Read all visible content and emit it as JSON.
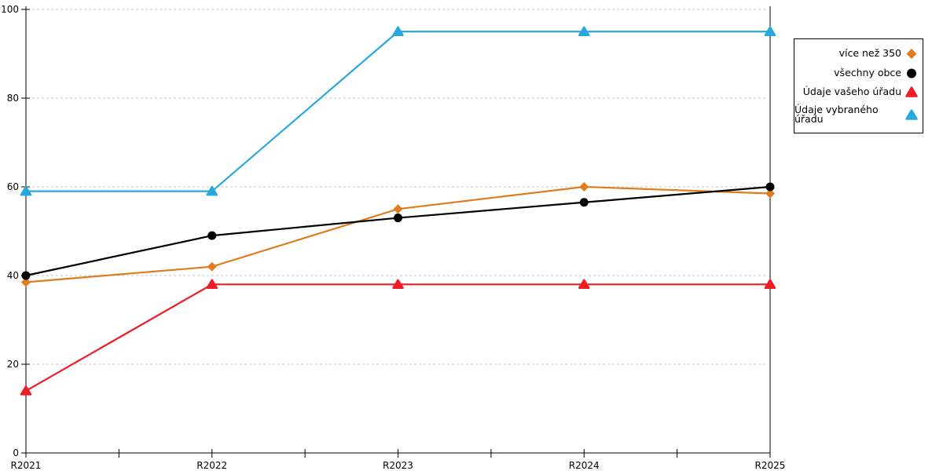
{
  "chart_data": {
    "type": "line",
    "title": "",
    "xlabel": "",
    "ylabel": "",
    "categories": [
      "R2021",
      "R2022",
      "R2023",
      "R2024",
      "R2025"
    ],
    "series": [
      {
        "name": "více než 350",
        "color": "#E07C1E",
        "marker": "diamond",
        "values": [
          38.5,
          42,
          55,
          60,
          58.5
        ]
      },
      {
        "name": "všechny obce",
        "color": "#000000",
        "marker": "circle",
        "values": [
          40,
          49,
          53,
          56.5,
          60
        ]
      },
      {
        "name": "Údaje vašeho úřadu",
        "color": "#EE1C25",
        "marker": "triangle",
        "values": [
          14,
          38,
          38,
          38,
          38
        ]
      },
      {
        "name": "Údaje vybraného úřadu",
        "color": "#29A8E0",
        "marker": "triangle",
        "values": [
          59,
          59,
          95,
          95,
          95
        ]
      }
    ],
    "ylim": [
      0,
      100
    ],
    "yticks": [
      0,
      20,
      40,
      60,
      80,
      100
    ],
    "x_minor_ticks": true,
    "grid": "horizontal-dashed",
    "gridline_color": "#c4c4c4",
    "axis_color": "#000000",
    "legend_position": "outside-right-top",
    "legend_border_color": "#000000"
  }
}
